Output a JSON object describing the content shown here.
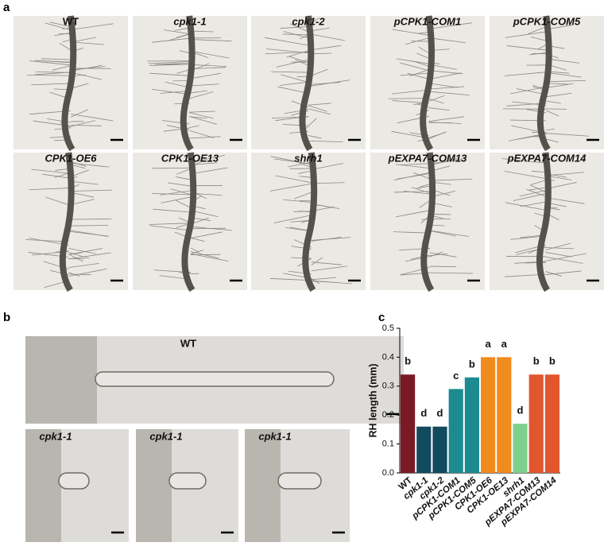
{
  "panel_a": {
    "letter": "a",
    "labels": [
      "WT",
      "cpk1-1",
      "cpk1-2",
      "pCPK1-COM1",
      "pCPK1-COM5",
      "CPK1-OE6",
      "CPK1-OE13",
      "shrh1",
      "pEXPA7-COM13",
      "pEXPA7-COM14"
    ]
  },
  "panel_b": {
    "letter": "b",
    "labels": [
      "WT",
      "cpk1-1",
      "cpk1-1",
      "cpk1-1"
    ]
  },
  "panel_c": {
    "letter": "c"
  },
  "chart_data": {
    "type": "bar",
    "ylabel": "RH length (mm)",
    "categories": [
      "WT",
      "cpk1-1",
      "cpk1-2",
      "pCPK1-COM1",
      "pCPK1-COM5",
      "CPK1-OE6",
      "CPK1-OE13",
      "shrh1",
      "pEXPA7-COM13",
      "pEXPA7-COM14"
    ],
    "values": [
      0.34,
      0.16,
      0.16,
      0.29,
      0.33,
      0.4,
      0.4,
      0.17,
      0.34,
      0.34
    ],
    "colors": [
      "#7b1a26",
      "#134b5e",
      "#134b5e",
      "#1c8b90",
      "#1c8b90",
      "#f08b1e",
      "#f08b1e",
      "#7fd08c",
      "#e2562f",
      "#e2562f"
    ],
    "annotations": [
      "b",
      "d",
      "d",
      "c",
      "b",
      "a",
      "a",
      "d",
      "b",
      "b"
    ],
    "ylim": [
      0,
      0.5
    ],
    "yticks": [
      {
        "value": 0,
        "label": "0.0"
      },
      0.1,
      0.2,
      0.3,
      0.4,
      0.5
    ]
  }
}
